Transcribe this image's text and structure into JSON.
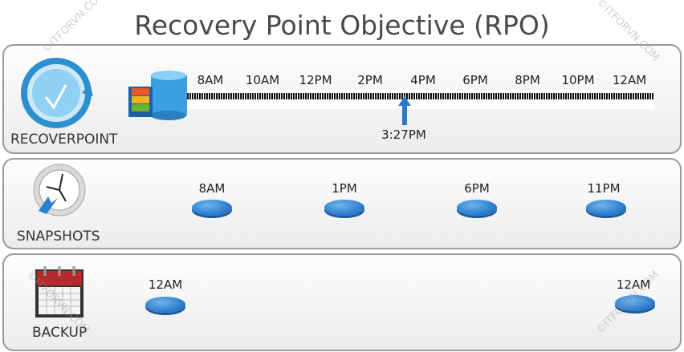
{
  "title": "Recovery Point Objective (RPO)",
  "watermark": "©ITFORVN.COM",
  "recoverpoint": {
    "label": "RECOVERPOINT",
    "ticks": [
      "8AM",
      "10AM",
      "12PM",
      "2PM",
      "4PM",
      "6PM",
      "8PM",
      "10PM",
      "12AM"
    ],
    "marker": "3:27PM"
  },
  "snapshots": {
    "label": "SNAPSHOTS",
    "times": [
      "8AM",
      "1PM",
      "6PM",
      "11PM"
    ]
  },
  "backup": {
    "label": "BACKUP",
    "times": [
      "12AM",
      "12AM"
    ]
  },
  "colors": {
    "disc": "#2f7fcf",
    "arrow": "#2a78c8"
  }
}
